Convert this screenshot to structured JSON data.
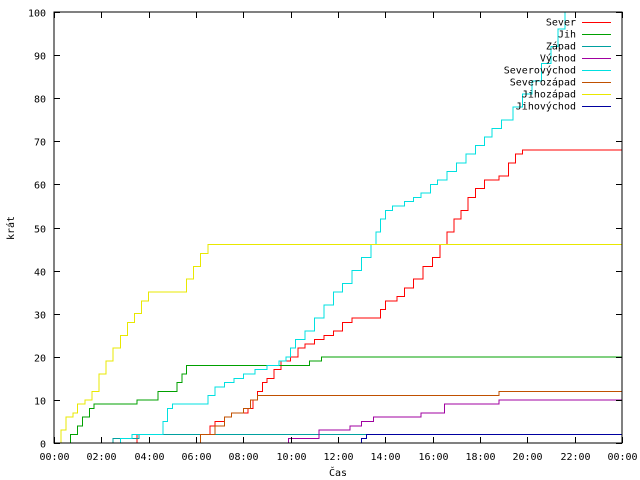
{
  "chart_data": {
    "type": "line",
    "title": "",
    "xlabel": "Čas",
    "ylabel": "krát",
    "xlim": [
      0,
      24
    ],
    "ylim": [
      0,
      100
    ],
    "grid": false,
    "legend_position": "top-right",
    "x_unit": "hours",
    "x_ticks": [
      {
        "value": 0,
        "label": "00:00"
      },
      {
        "value": 2,
        "label": "02:00"
      },
      {
        "value": 4,
        "label": "04:00"
      },
      {
        "value": 6,
        "label": "06:00"
      },
      {
        "value": 8,
        "label": "08:00"
      },
      {
        "value": 10,
        "label": "10:00"
      },
      {
        "value": 12,
        "label": "12:00"
      },
      {
        "value": 14,
        "label": "14:00"
      },
      {
        "value": 16,
        "label": "16:00"
      },
      {
        "value": 18,
        "label": "18:00"
      },
      {
        "value": 20,
        "label": "20:00"
      },
      {
        "value": 22,
        "label": "22:00"
      },
      {
        "value": 24,
        "label": "00:00"
      }
    ],
    "y_ticks": [
      {
        "value": 0,
        "label": "0"
      },
      {
        "value": 10,
        "label": "10"
      },
      {
        "value": 20,
        "label": "20"
      },
      {
        "value": 30,
        "label": "30"
      },
      {
        "value": 40,
        "label": "40"
      },
      {
        "value": 50,
        "label": "50"
      },
      {
        "value": 60,
        "label": "60"
      },
      {
        "value": 70,
        "label": "70"
      },
      {
        "value": 80,
        "label": "80"
      },
      {
        "value": 90,
        "label": "90"
      },
      {
        "value": 100,
        "label": "100"
      }
    ],
    "series": [
      {
        "name": "Sever",
        "color": "#ff0000",
        "points": [
          [
            3.5,
            0
          ],
          [
            3.5,
            2
          ],
          [
            6.5,
            2
          ],
          [
            6.6,
            4
          ],
          [
            6.8,
            5
          ],
          [
            7.2,
            6
          ],
          [
            7.5,
            7
          ],
          [
            8.0,
            7
          ],
          [
            8.2,
            8
          ],
          [
            8.4,
            10
          ],
          [
            8.6,
            12
          ],
          [
            8.8,
            14
          ],
          [
            9.0,
            15
          ],
          [
            9.3,
            17
          ],
          [
            9.6,
            19
          ],
          [
            10.0,
            20
          ],
          [
            10.3,
            22
          ],
          [
            10.6,
            23
          ],
          [
            11.0,
            24
          ],
          [
            11.4,
            25
          ],
          [
            11.8,
            26
          ],
          [
            12.2,
            28
          ],
          [
            12.6,
            29
          ],
          [
            13.5,
            29
          ],
          [
            13.8,
            31
          ],
          [
            14.0,
            33
          ],
          [
            14.5,
            34
          ],
          [
            14.8,
            36
          ],
          [
            15.2,
            38
          ],
          [
            15.6,
            41
          ],
          [
            16.0,
            43
          ],
          [
            16.3,
            46
          ],
          [
            16.6,
            49
          ],
          [
            16.9,
            52
          ],
          [
            17.2,
            54
          ],
          [
            17.5,
            57
          ],
          [
            17.8,
            59
          ],
          [
            18.2,
            61
          ],
          [
            18.8,
            62
          ],
          [
            19.2,
            65
          ],
          [
            19.5,
            67
          ],
          [
            19.8,
            68
          ],
          [
            24.0,
            68
          ]
        ]
      },
      {
        "name": "Jih",
        "color": "#00a000",
        "points": [
          [
            0.6,
            0
          ],
          [
            0.7,
            2
          ],
          [
            1.0,
            4
          ],
          [
            1.2,
            6
          ],
          [
            1.5,
            8
          ],
          [
            1.7,
            9
          ],
          [
            3.3,
            9
          ],
          [
            3.5,
            10
          ],
          [
            4.2,
            10
          ],
          [
            4.4,
            12
          ],
          [
            5.0,
            12
          ],
          [
            5.2,
            14
          ],
          [
            5.4,
            16
          ],
          [
            5.6,
            18
          ],
          [
            10.5,
            18
          ],
          [
            10.8,
            19
          ],
          [
            11.2,
            19
          ],
          [
            11.3,
            20
          ],
          [
            24.0,
            20
          ]
        ]
      },
      {
        "name": "Západ",
        "color": "#00a0a0",
        "points": [
          [
            2.5,
            0
          ],
          [
            2.5,
            1
          ],
          [
            3.5,
            1
          ],
          [
            3.6,
            2
          ],
          [
            4.5,
            2
          ],
          [
            24.0,
            2
          ]
        ]
      },
      {
        "name": "Východ",
        "color": "#a000a0",
        "points": [
          [
            9.9,
            0
          ],
          [
            9.9,
            1
          ],
          [
            11.0,
            1
          ],
          [
            11.2,
            3
          ],
          [
            12.0,
            3
          ],
          [
            12.5,
            4
          ],
          [
            13.0,
            5
          ],
          [
            13.5,
            6
          ],
          [
            15.0,
            6
          ],
          [
            15.5,
            7
          ],
          [
            16.5,
            9
          ],
          [
            18.5,
            9
          ],
          [
            18.8,
            10
          ],
          [
            24.0,
            10
          ]
        ]
      },
      {
        "name": "Severovýchod",
        "color": "#00e0e0",
        "points": [
          [
            2.5,
            0
          ],
          [
            2.8,
            1
          ],
          [
            3.3,
            2
          ],
          [
            4.5,
            2
          ],
          [
            4.6,
            5
          ],
          [
            4.8,
            8
          ],
          [
            5.0,
            9
          ],
          [
            6.0,
            9
          ],
          [
            6.5,
            11
          ],
          [
            6.8,
            13
          ],
          [
            7.2,
            14
          ],
          [
            7.6,
            15
          ],
          [
            8.0,
            16
          ],
          [
            8.5,
            17
          ],
          [
            9.0,
            18
          ],
          [
            9.5,
            19
          ],
          [
            9.8,
            20
          ],
          [
            10.0,
            22
          ],
          [
            10.2,
            24
          ],
          [
            10.6,
            26
          ],
          [
            11.0,
            29
          ],
          [
            11.4,
            32
          ],
          [
            11.8,
            35
          ],
          [
            12.2,
            37
          ],
          [
            12.6,
            40
          ],
          [
            13.0,
            43
          ],
          [
            13.4,
            46
          ],
          [
            13.6,
            49
          ],
          [
            13.8,
            52
          ],
          [
            14.0,
            54
          ],
          [
            14.3,
            55
          ],
          [
            14.8,
            56
          ],
          [
            15.2,
            57
          ],
          [
            15.5,
            58
          ],
          [
            15.9,
            60
          ],
          [
            16.2,
            61
          ],
          [
            16.6,
            63
          ],
          [
            17.0,
            65
          ],
          [
            17.4,
            67
          ],
          [
            17.8,
            69
          ],
          [
            18.2,
            71
          ],
          [
            18.5,
            73
          ],
          [
            18.9,
            75
          ],
          [
            19.4,
            78
          ],
          [
            19.8,
            81
          ],
          [
            20.2,
            84
          ],
          [
            20.6,
            88
          ],
          [
            21.0,
            92
          ],
          [
            21.3,
            96
          ],
          [
            21.6,
            100
          ]
        ]
      },
      {
        "name": "Severozápad",
        "color": "#c05000",
        "points": [
          [
            6.2,
            0
          ],
          [
            6.2,
            2
          ],
          [
            6.8,
            4
          ],
          [
            7.2,
            6
          ],
          [
            7.5,
            7
          ],
          [
            8.0,
            8
          ],
          [
            8.3,
            10
          ],
          [
            8.6,
            11
          ],
          [
            18.6,
            11
          ],
          [
            18.8,
            12
          ],
          [
            24.0,
            12
          ]
        ]
      },
      {
        "name": "Jihozápad",
        "color": "#e8e800",
        "points": [
          [
            0.1,
            0
          ],
          [
            0.3,
            3
          ],
          [
            0.5,
            6
          ],
          [
            0.8,
            7
          ],
          [
            1.0,
            9
          ],
          [
            1.3,
            10
          ],
          [
            1.6,
            12
          ],
          [
            1.9,
            16
          ],
          [
            2.2,
            19
          ],
          [
            2.5,
            22
          ],
          [
            2.8,
            25
          ],
          [
            3.1,
            28
          ],
          [
            3.4,
            30
          ],
          [
            3.7,
            33
          ],
          [
            4.0,
            35
          ],
          [
            5.3,
            35
          ],
          [
            5.6,
            38
          ],
          [
            5.9,
            41
          ],
          [
            6.2,
            44
          ],
          [
            6.5,
            46
          ],
          [
            24.0,
            46
          ]
        ]
      },
      {
        "name": "Jihovýchod",
        "color": "#0000a0",
        "points": [
          [
            12.9,
            0
          ],
          [
            13.0,
            1
          ],
          [
            13.2,
            2
          ],
          [
            24.0,
            2
          ]
        ]
      }
    ]
  }
}
